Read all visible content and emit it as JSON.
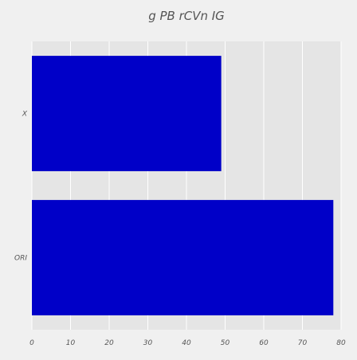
{
  "chart_data": {
    "type": "bar",
    "orientation": "horizontal",
    "title": "g PB rCVn IG",
    "xlabel": "",
    "ylabel": "",
    "categories": [
      "X",
      "ORI"
    ],
    "values": [
      49,
      78
    ],
    "xlim": [
      0,
      80
    ],
    "xticks": [
      0,
      10,
      20,
      30,
      40,
      50,
      60,
      70,
      80
    ],
    "grid": true,
    "legend": "none",
    "colors": {
      "bar": "#0000c8",
      "plot_background": "#e5e5e5",
      "grid": "#ffffff",
      "page_background": "#f0f0f0",
      "text": "#555555"
    }
  }
}
